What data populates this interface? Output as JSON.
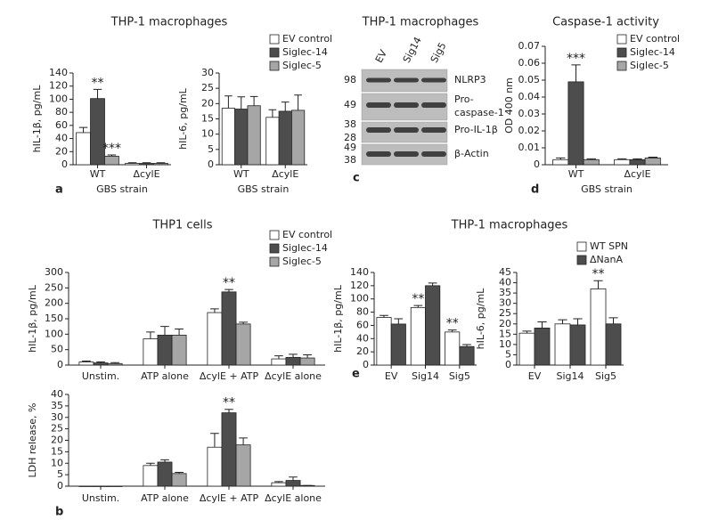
{
  "chart_data": [
    {
      "type": "bar",
      "panel": "a",
      "title": "THP-1 macrophages",
      "ylabel": "hIL-1β, pg/mL",
      "xlabel": "GBS strain",
      "categories": [
        "WT",
        "ΔcylE"
      ],
      "ylim": [
        0,
        140
      ],
      "yticks": [
        0,
        20,
        40,
        60,
        80,
        100,
        120,
        140
      ],
      "legend": true,
      "series": [
        {
          "name": "EV control",
          "color": "#ffffff",
          "values": [
            49,
            2
          ],
          "errors": [
            8,
            1
          ]
        },
        {
          "name": "Siglec-14",
          "color": "#4d4d4d",
          "values": [
            101,
            2
          ],
          "errors": [
            14,
            1
          ]
        },
        {
          "name": "Siglec-5",
          "color": "#a6a6a6",
          "values": [
            13,
            2
          ],
          "errors": [
            2,
            1
          ]
        }
      ],
      "annotations": [
        {
          "text": "**",
          "category": "WT",
          "series": "Siglec-14"
        },
        {
          "text": "***",
          "category": "WT",
          "series": "Siglec-5"
        }
      ]
    },
    {
      "type": "bar",
      "ylabel": "hIL-6, pg/mL",
      "xlabel": "GBS strain",
      "categories": [
        "WT",
        "ΔcylE"
      ],
      "ylim": [
        0,
        30
      ],
      "yticks": [
        0,
        5,
        10,
        15,
        20,
        25,
        30
      ],
      "series": [
        {
          "color": "#ffffff",
          "values": [
            18.5,
            15.5
          ],
          "errors": [
            4,
            2.5
          ]
        },
        {
          "color": "#4d4d4d",
          "values": [
            18.2,
            17.5
          ],
          "errors": [
            4,
            3
          ]
        },
        {
          "color": "#a6a6a6",
          "values": [
            19.3,
            17.8
          ],
          "errors": [
            3,
            5
          ]
        }
      ]
    },
    {
      "type": "bar",
      "panel": "d",
      "title": "Caspase-1 activity",
      "ylabel": "OD 400 nm",
      "xlabel": "GBS strain",
      "categories": [
        "WT",
        "ΔcylE"
      ],
      "ylim": [
        0,
        0.07
      ],
      "yticks": [
        0,
        0.01,
        0.02,
        0.03,
        0.04,
        0.05,
        0.06,
        0.07
      ],
      "legend": true,
      "series": [
        {
          "name": "EV control",
          "color": "#ffffff",
          "values": [
            0.003,
            0.003
          ],
          "errors": [
            0.001,
            0.0005
          ]
        },
        {
          "name": "Siglec-14",
          "color": "#4d4d4d",
          "values": [
            0.049,
            0.003
          ],
          "errors": [
            0.01,
            0.0005
          ]
        },
        {
          "name": "Siglec-5",
          "color": "#a6a6a6",
          "values": [
            0.003,
            0.004
          ],
          "errors": [
            0.0005,
            0.0005
          ]
        }
      ],
      "annotations": [
        {
          "text": "***",
          "category": "WT",
          "series": "Siglec-14"
        }
      ]
    },
    {
      "type": "bar",
      "title": "THP1 cells",
      "ylabel": "hIL-1β, pg/mL",
      "categories": [
        "Unstim.",
        "ATP alone",
        "ΔcylE + ATP",
        "ΔcylE alone"
      ],
      "ylim": [
        0,
        300
      ],
      "yticks": [
        0,
        50,
        100,
        150,
        200,
        250,
        300
      ],
      "legend": true,
      "series": [
        {
          "name": "EV control",
          "color": "#ffffff",
          "values": [
            10,
            85,
            170,
            20
          ],
          "errors": [
            3,
            22,
            12,
            10
          ]
        },
        {
          "name": "Siglec-14",
          "color": "#4d4d4d",
          "values": [
            7,
            97,
            237,
            25
          ],
          "errors": [
            3,
            28,
            8,
            10
          ]
        },
        {
          "name": "Siglec-5",
          "color": "#a6a6a6",
          "values": [
            5,
            97,
            133,
            23
          ],
          "errors": [
            3,
            20,
            6,
            10
          ]
        }
      ],
      "annotations": [
        {
          "text": "**",
          "category": "ΔcylE + ATP",
          "series": "Siglec-14"
        }
      ]
    },
    {
      "type": "bar",
      "panel": "b",
      "ylabel": "LDH release, %",
      "categories": [
        "Unstim.",
        "ATP alone",
        "ΔcylE + ATP",
        "ΔcylE alone"
      ],
      "ylim": [
        0,
        40
      ],
      "yticks": [
        0,
        5,
        10,
        15,
        20,
        25,
        30,
        35,
        40
      ],
      "series": [
        {
          "color": "#ffffff",
          "values": [
            0,
            9,
            17,
            1.5
          ],
          "errors": [
            0,
            1,
            6,
            0.5
          ]
        },
        {
          "color": "#4d4d4d",
          "values": [
            0,
            10.5,
            32,
            2.5
          ],
          "errors": [
            0,
            1,
            1.5,
            1.5
          ]
        },
        {
          "color": "#a6a6a6",
          "values": [
            0,
            5.5,
            18,
            0.3
          ],
          "errors": [
            0,
            0.5,
            3,
            0
          ]
        }
      ],
      "annotations": [
        {
          "text": "**",
          "category": "ΔcylE + ATP",
          "series": 1
        }
      ]
    },
    {
      "type": "bar",
      "panel": "e",
      "title": "THP-1 macrophages",
      "ylabel": "hIL-1β, pg/mL",
      "categories": [
        "EV",
        "Sig14",
        "Sig5"
      ],
      "ylim": [
        0,
        140
      ],
      "yticks": [
        0,
        20,
        40,
        60,
        80,
        100,
        120,
        140
      ],
      "legend": true,
      "series": [
        {
          "name": "WT SPN",
          "color": "#ffffff",
          "values": [
            72,
            87,
            50
          ],
          "errors": [
            3,
            3,
            3
          ]
        },
        {
          "name": "ΔNanA",
          "color": "#4d4d4d",
          "values": [
            62,
            120,
            28
          ],
          "errors": [
            8,
            4,
            3
          ]
        }
      ],
      "annotations": [
        {
          "text": "**",
          "category": "Sig14",
          "series": "WT SPN"
        },
        {
          "text": "**",
          "category": "Sig5",
          "series": "WT SPN"
        }
      ]
    },
    {
      "type": "bar",
      "ylabel": "hIL-6, pg/mL",
      "categories": [
        "EV",
        "Sig14",
        "Sig5"
      ],
      "ylim": [
        0,
        45
      ],
      "yticks": [
        0,
        5,
        10,
        15,
        20,
        25,
        30,
        35,
        40,
        45
      ],
      "series": [
        {
          "color": "#ffffff",
          "values": [
            15.5,
            20,
            37
          ],
          "errors": [
            1,
            2,
            4
          ]
        },
        {
          "color": "#4d4d4d",
          "values": [
            18,
            19.5,
            20
          ],
          "errors": [
            3,
            3,
            3
          ]
        }
      ],
      "annotations": [
        {
          "text": "**",
          "category": "Sig5",
          "series": 0
        }
      ]
    }
  ],
  "blot": {
    "panel": "c",
    "title": "THP-1 macrophages",
    "lanes": [
      "EV",
      "Sig14",
      "Sig5"
    ],
    "markers": [
      98,
      49,
      38,
      28,
      49,
      38
    ],
    "labels": [
      [
        "NLRP3"
      ],
      [
        "Pro-",
        "caspase-1"
      ],
      [
        "Pro-IL-1β"
      ],
      [
        "β-Actin"
      ]
    ]
  }
}
